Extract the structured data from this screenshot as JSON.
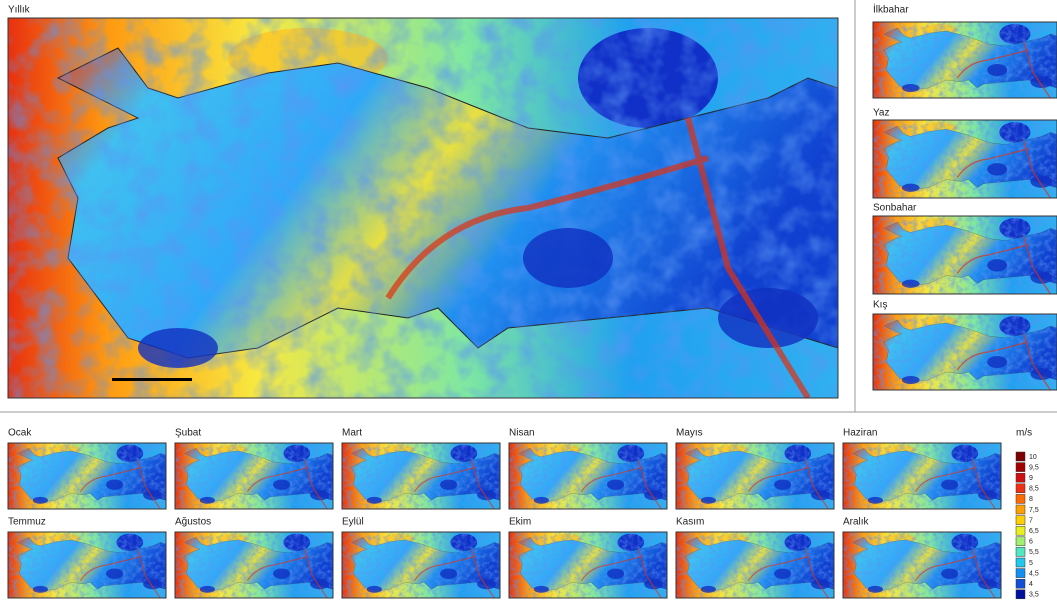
{
  "main_map": {
    "title": "Yıllık"
  },
  "seasonal_maps": [
    {
      "title": "İlkbahar"
    },
    {
      "title": "Yaz"
    },
    {
      "title": "Sonbahar"
    },
    {
      "title": "Kış"
    }
  ],
  "monthly_maps": [
    {
      "title": "Ocak"
    },
    {
      "title": "Şubat"
    },
    {
      "title": "Mart"
    },
    {
      "title": "Nisan"
    },
    {
      "title": "Mayıs"
    },
    {
      "title": "Haziran"
    },
    {
      "title": "Temmuz"
    },
    {
      "title": "Ağustos"
    },
    {
      "title": "Eylül"
    },
    {
      "title": "Ekim"
    },
    {
      "title": "Kasım"
    },
    {
      "title": "Aralık"
    }
  ],
  "legend": {
    "unit": "m/s",
    "items": [
      {
        "label": "10",
        "color": "#7f0000"
      },
      {
        "label": "9,5",
        "color": "#a50000"
      },
      {
        "label": "9",
        "color": "#d01010"
      },
      {
        "label": "8,5",
        "color": "#f03010"
      },
      {
        "label": "8",
        "color": "#ff6a00"
      },
      {
        "label": "7,5",
        "color": "#ffa000"
      },
      {
        "label": "7",
        "color": "#ffd000"
      },
      {
        "label": "6,5",
        "color": "#e8f020"
      },
      {
        "label": "6",
        "color": "#a0f070"
      },
      {
        "label": "5,5",
        "color": "#50e8c0"
      },
      {
        "label": "5",
        "color": "#20c8f0"
      },
      {
        "label": "4,5",
        "color": "#1090f0"
      },
      {
        "label": "4",
        "color": "#1050d8"
      },
      {
        "label": "3,5",
        "color": "#0010a0"
      }
    ]
  }
}
